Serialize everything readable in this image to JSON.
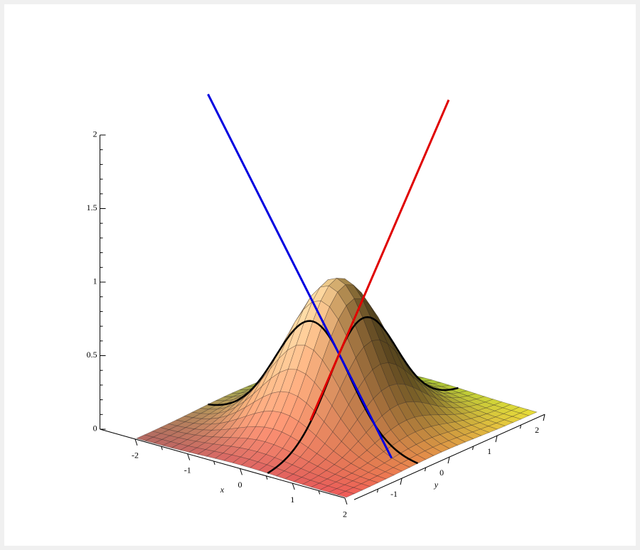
{
  "chart_data": {
    "type": "surface",
    "xlabel": "x",
    "ylabel": "y",
    "xlim": [
      -2,
      2
    ],
    "ylim": [
      -2,
      2
    ],
    "zlim": [
      0,
      2
    ],
    "xticks": [
      -2,
      -1,
      0,
      1,
      2
    ],
    "yticks": [
      -1,
      0,
      1,
      2
    ],
    "zticks": [
      0,
      0.5,
      1,
      1.5,
      2
    ],
    "line_colors": [
      "#0000e0",
      "#e00000"
    ]
  }
}
